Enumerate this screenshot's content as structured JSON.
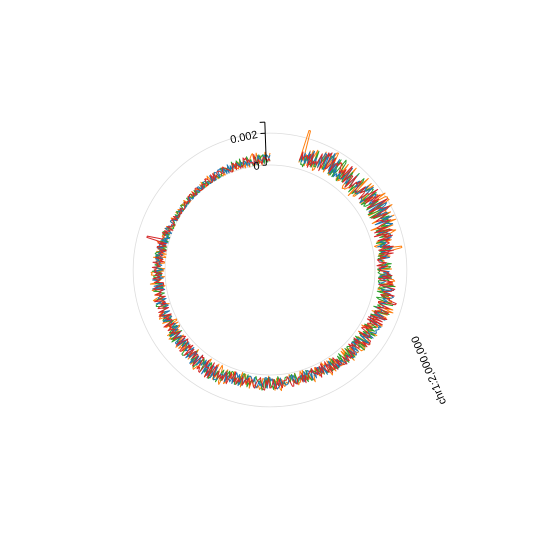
{
  "chart_data": {
    "type": "line",
    "layout": "circular",
    "region_label": "chr1:2,000,000",
    "y_axis": {
      "ylim": [
        0,
        0.0027
      ],
      "ticks": [
        {
          "value": 0,
          "label": "0"
        },
        {
          "value": 0.002,
          "label": "0.002"
        }
      ]
    },
    "grid": true,
    "x_range_deg": [
      15,
      360
    ],
    "series": [
      {
        "color": "#ff7f0e",
        "seed": 101,
        "amp": 1.2
      },
      {
        "color": "#2ca02c",
        "seed": 202,
        "amp": 1.0
      },
      {
        "color": "#1f77b4",
        "seed": 303,
        "amp": 0.9
      },
      {
        "color": "#d62728",
        "seed": 404,
        "amp": 1.0
      }
    ],
    "profile": [
      {
        "deg": 15,
        "value": 0.0006
      },
      {
        "deg": 30,
        "value": 0.0011
      },
      {
        "deg": 45,
        "value": 0.0009
      },
      {
        "deg": 60,
        "value": 0.0012
      },
      {
        "deg": 75,
        "value": 0.0008
      },
      {
        "deg": 90,
        "value": 0.0005
      },
      {
        "deg": 105,
        "value": 0.0009
      },
      {
        "deg": 120,
        "value": 0.0007
      },
      {
        "deg": 135,
        "value": 0.0006
      },
      {
        "deg": 150,
        "value": 0.0005
      },
      {
        "deg": 165,
        "value": 0.0004
      },
      {
        "deg": 180,
        "value": 0.0005
      },
      {
        "deg": 195,
        "value": 0.0005
      },
      {
        "deg": 210,
        "value": 0.0007
      },
      {
        "deg": 225,
        "value": 0.0006
      },
      {
        "deg": 240,
        "value": 0.0005
      },
      {
        "deg": 255,
        "value": 0.0005
      },
      {
        "deg": 270,
        "value": 0.0004
      },
      {
        "deg": 285,
        "value": 0.0003
      },
      {
        "deg": 300,
        "value": 0.0001
      },
      {
        "deg": 315,
        "value": 0.0001
      },
      {
        "deg": 330,
        "value": 0.0002
      },
      {
        "deg": 345,
        "value": 0.0003
      },
      {
        "deg": 360,
        "value": 0.0004
      }
    ],
    "spikes": [
      {
        "deg": 16,
        "value": 0.0025,
        "series": 0
      },
      {
        "deg": 80,
        "value": 0.0018,
        "series": 0
      },
      {
        "deg": 110,
        "value": 0.0013,
        "series": 3
      },
      {
        "deg": 140,
        "value": 0.0009,
        "series": 0
      },
      {
        "deg": 285,
        "value": 0.0014,
        "series": 3
      }
    ]
  }
}
